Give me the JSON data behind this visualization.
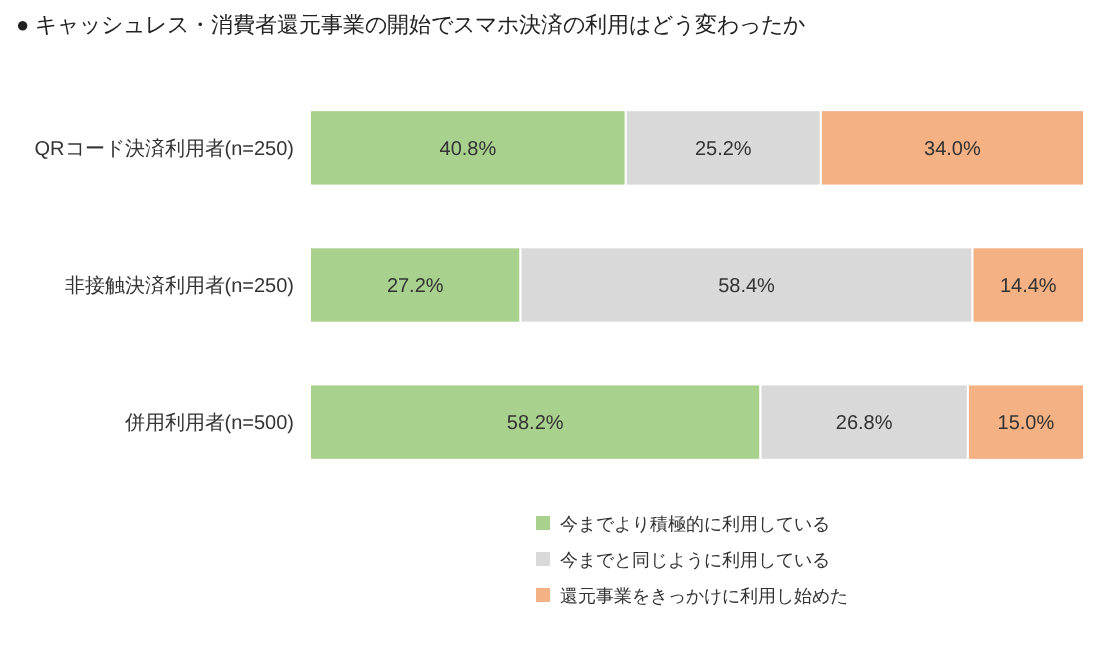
{
  "chart_data": {
    "type": "bar",
    "orientation": "horizontal",
    "stacked": true,
    "title": "● キャッシュレス・消費者還元事業の開始でスマホ決済の利用はどう変わったか",
    "categories": [
      "QRコード決済利用者(n=250)",
      "非接触決済利用者(n=250)",
      "併用利用者(n=500)"
    ],
    "series": [
      {
        "name": "今までより積極的に利用している",
        "color": "#a9d18e",
        "values": [
          40.8,
          27.2,
          58.2
        ],
        "value_labels": [
          "40.8%",
          "27.2%",
          "58.2%"
        ]
      },
      {
        "name": "今までと同じように利用している",
        "color": "#d9d9d9",
        "values": [
          25.2,
          58.4,
          26.8
        ],
        "value_labels": [
          "25.2%",
          "58.4%",
          "26.8%"
        ]
      },
      {
        "name": "還元事業をきっかけに利用し始めた",
        "color": "#f4b183",
        "values": [
          34.0,
          14.4,
          15.0
        ],
        "value_labels": [
          "34.0%",
          "14.4%",
          "15.0%"
        ]
      }
    ],
    "legend": "bottom",
    "grid": false
  }
}
